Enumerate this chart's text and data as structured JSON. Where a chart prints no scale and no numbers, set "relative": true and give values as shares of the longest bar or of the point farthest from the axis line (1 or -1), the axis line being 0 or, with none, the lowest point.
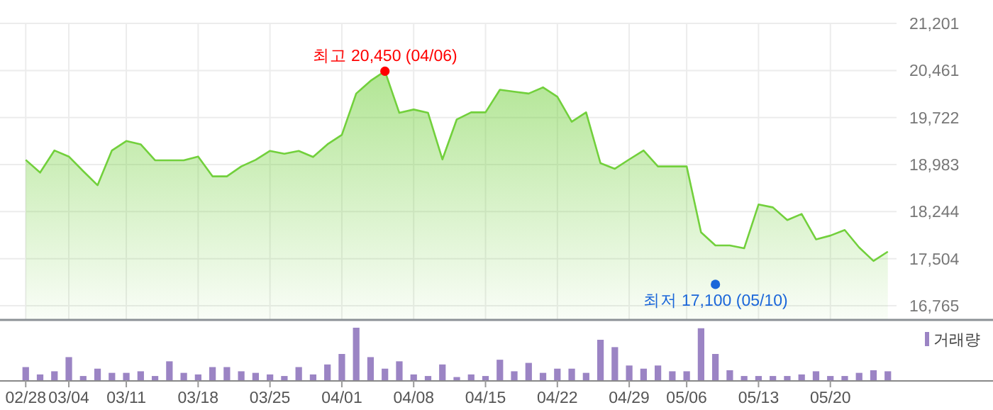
{
  "chart_data": [
    {
      "type": "area",
      "categories": [
        null,
        null,
        null,
        null,
        null,
        null,
        null,
        null,
        null,
        null,
        null,
        null,
        null,
        null,
        null,
        null,
        null,
        null,
        null,
        null,
        null,
        null,
        null,
        null,
        null,
        null,
        null,
        null,
        null,
        null,
        null,
        null,
        null,
        null,
        null,
        null,
        null,
        null,
        null,
        null,
        null,
        null,
        null,
        null,
        null,
        null,
        null,
        null,
        null,
        null,
        null,
        null,
        null,
        null,
        null,
        null,
        null,
        null,
        null,
        null,
        null
      ],
      "series": [
        {
          "color": "#72d03c",
          "values": [
            19057,
            18857,
            19205,
            19109,
            18880,
            18658,
            19205,
            19353,
            19301,
            19050,
            19050,
            19050,
            19109,
            18798,
            18798,
            18954,
            19057,
            19198,
            19153,
            19198,
            19102,
            19301,
            19449,
            20099,
            20299,
            20450,
            19796,
            19848,
            19796,
            19064,
            19693,
            19804,
            19804,
            20159,
            20129,
            20099,
            20196,
            20048,
            19656,
            19804,
            19005,
            18917,
            19064,
            19205,
            18954,
            18954,
            18954,
            17919,
            17712,
            17712,
            17667,
            18355,
            18310,
            18111,
            18207,
            17808,
            17867,
            17955,
            17682,
            17468,
            17615
          ]
        },
        {
          "type": "scatter",
          "values": [
            null,
            null,
            null,
            null,
            null,
            null,
            null,
            null,
            null,
            null,
            null,
            null,
            null,
            null,
            null,
            null,
            null,
            null,
            null,
            null,
            null,
            null,
            null,
            null,
            null,
            20450,
            null,
            null,
            null,
            null,
            null,
            null,
            null,
            null,
            null,
            null,
            null,
            null,
            null,
            null,
            null,
            null,
            null,
            null,
            null,
            null,
            null,
            null,
            17100,
            null,
            null,
            null,
            null,
            null,
            null,
            null,
            null,
            null,
            null,
            null,
            null
          ],
          "colors": [
            null,
            null,
            null,
            null,
            null,
            null,
            null,
            null,
            null,
            null,
            null,
            null,
            null,
            null,
            null,
            null,
            null,
            null,
            null,
            null,
            null,
            null,
            null,
            null,
            null,
            "#ff0000",
            null,
            null,
            null,
            null,
            null,
            null,
            null,
            null,
            null,
            null,
            null,
            null,
            null,
            null,
            null,
            null,
            null,
            null,
            null,
            null,
            null,
            null,
            "#1a66d9",
            null,
            null,
            null,
            null,
            null,
            null,
            null,
            null,
            null,
            null,
            null,
            null
          ]
        }
      ],
      "annotations": [
        "최고 20,450 (04/06)",
        "최저 17,100 (05/10)"
      ],
      "ylim": [
        16553,
        21201
      ],
      "yticks": [
        {
          "value": 16765,
          "label": "16,765"
        },
        {
          "value": 17504,
          "label": "17,504"
        },
        {
          "value": 18244,
          "label": "18,244"
        },
        {
          "value": 18983,
          "label": "18,983"
        },
        {
          "value": 19722,
          "label": "19,722"
        },
        {
          "value": 20461,
          "label": "20,461"
        },
        {
          "value": 21201,
          "label": "21,201"
        }
      ],
      "grid": true,
      "tick_labels": "y"
    },
    {
      "type": "bar",
      "relative": true,
      "categories": [
        "02/28",
        null,
        null,
        "03/04",
        null,
        null,
        null,
        "03/11",
        null,
        null,
        null,
        null,
        "03/18",
        null,
        null,
        null,
        null,
        "03/25",
        null,
        null,
        null,
        null,
        "04/01",
        null,
        null,
        null,
        null,
        "04/08",
        null,
        null,
        null,
        null,
        "04/15",
        null,
        null,
        null,
        null,
        "04/22",
        null,
        null,
        null,
        null,
        "04/29",
        null,
        null,
        null,
        "05/06",
        null,
        null,
        null,
        null,
        "05/13",
        null,
        null,
        null,
        null,
        "05/20",
        null,
        null,
        null,
        null
      ],
      "series": [
        {
          "name": "거래량",
          "color": "#9b84c4",
          "values": [
            0.25,
            0.11,
            0.17,
            0.44,
            0.08,
            0.22,
            0.14,
            0.14,
            0.17,
            0.08,
            0.36,
            0.14,
            0.11,
            0.25,
            0.25,
            0.17,
            0.14,
            0.11,
            0.08,
            0.25,
            0.11,
            0.3,
            0.5,
            1,
            0.44,
            0.22,
            0.36,
            0.11,
            0.08,
            0.3,
            0.06,
            0.11,
            0.08,
            0.39,
            0.17,
            0.33,
            0.14,
            0.22,
            0.22,
            0.14,
            0.77,
            0.63,
            0.28,
            0.22,
            0.28,
            0.17,
            0.17,
            0.99,
            0.5,
            0.19,
            0.08,
            0.08,
            0.08,
            0.08,
            0.11,
            0.17,
            0.08,
            0.08,
            0.14,
            0.19,
            0.17
          ]
        }
      ],
      "legend": "top right"
    }
  ]
}
